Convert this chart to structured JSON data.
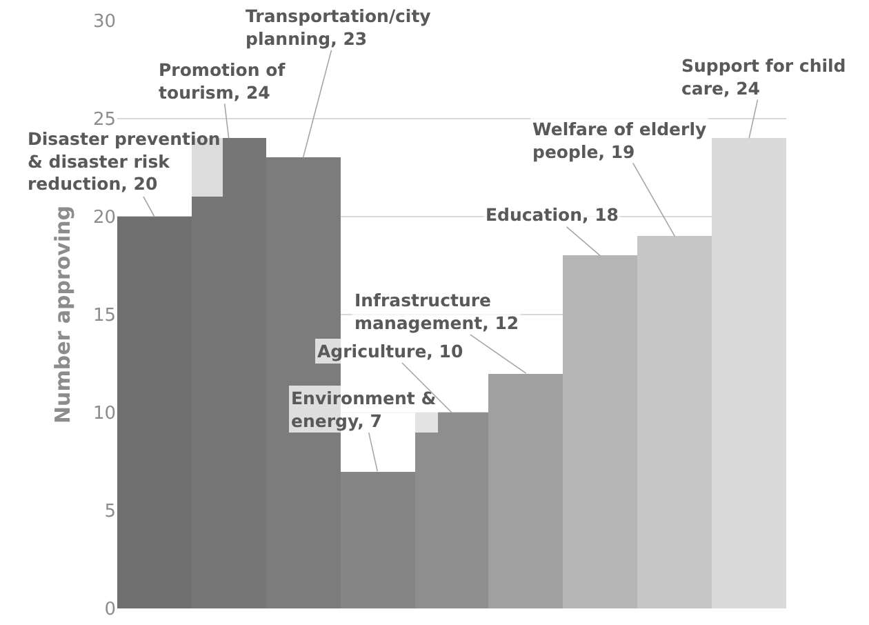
{
  "chart_data": {
    "type": "bar",
    "ylabel": "Number approving",
    "categories": [
      null,
      null,
      null,
      null,
      null,
      null,
      null,
      null,
      null
    ],
    "value_labels": [
      "Disaster prevention & disaster risk reduction, 20",
      "Promotion of tourism, 24",
      "Transportation/city planning, 23",
      "Environment & energy, 7",
      "Agriculture, 10",
      "Infrastructure management, 12",
      "Education, 18",
      "Welfare of elderly people, 19",
      "Support for child care, 24"
    ],
    "values": [
      20,
      24,
      23,
      7,
      10,
      12,
      18,
      19,
      24
    ],
    "colors": [
      "#6f6f6f",
      "#767676",
      "#7c7c7c",
      "#858585",
      "#8e8e8e",
      "#a0a0a0",
      "#b5b5b5",
      "#c6c6c6",
      "#dadada"
    ],
    "ylim": [
      0,
      30
    ],
    "yticks": [
      0,
      5,
      10,
      15,
      20,
      25,
      30
    ],
    "grid": "y",
    "tick_labels": "y"
  }
}
